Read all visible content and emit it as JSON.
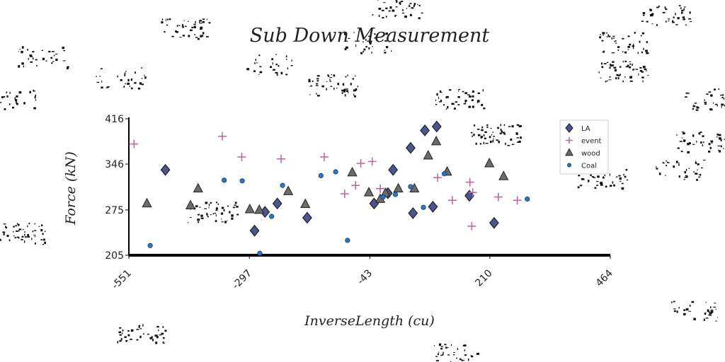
{
  "chart_data": {
    "type": "scatter",
    "title": "Sub Down Measurement",
    "xlabel": "InverseLength (cu)",
    "ylabel": "Force (kN)",
    "xlim": [
      -551,
      464
    ],
    "ylim": [
      205,
      416
    ],
    "xticks": [
      "-551",
      "-297",
      "-43",
      "210",
      "464"
    ],
    "yticks": [
      "205",
      "275",
      "346",
      "416"
    ],
    "legend_position": "top-right",
    "series": [
      {
        "name": "LA",
        "marker": "diamond",
        "color": "#4a5592",
        "points": [
          [
            -474,
            337
          ],
          [
            -286,
            243
          ],
          [
            -264,
            272
          ],
          [
            -238,
            285
          ],
          [
            -175,
            263
          ],
          [
            -34,
            285
          ],
          [
            -5,
            301
          ],
          [
            6,
            337
          ],
          [
            43,
            371
          ],
          [
            48,
            270
          ],
          [
            73,
            398
          ],
          [
            90,
            280
          ],
          [
            98,
            404
          ],
          [
            167,
            297
          ],
          [
            219,
            255
          ]
        ]
      },
      {
        "name": "event",
        "marker": "plus",
        "color": "#c0609a",
        "points": [
          [
            -540,
            377
          ],
          [
            -354,
            389
          ],
          [
            -313,
            357
          ],
          [
            -230,
            354
          ],
          [
            -139,
            357
          ],
          [
            -96,
            300
          ],
          [
            -73,
            313
          ],
          [
            -62,
            347
          ],
          [
            -38,
            350
          ],
          [
            -21,
            308
          ],
          [
            100,
            325
          ],
          [
            131,
            290
          ],
          [
            168,
            318
          ],
          [
            174,
            302
          ],
          [
            172,
            250
          ],
          [
            228,
            295
          ],
          [
            268,
            290
          ]
        ]
      },
      {
        "name": "wood",
        "marker": "triangle",
        "color": "#6b6b6b",
        "points": [
          [
            -513,
            285
          ],
          [
            -421,
            282
          ],
          [
            -405,
            308
          ],
          [
            -296,
            276
          ],
          [
            -276,
            275
          ],
          [
            -215,
            304
          ],
          [
            -179,
            284
          ],
          [
            -80,
            333
          ],
          [
            -45,
            302
          ],
          [
            -21,
            292
          ],
          [
            -10,
            301
          ],
          [
            17,
            308
          ],
          [
            51,
            308
          ],
          [
            80,
            359
          ],
          [
            97,
            381
          ],
          [
            120,
            334
          ],
          [
            209,
            347
          ],
          [
            239,
            327
          ]
        ]
      },
      {
        "name": "Coal",
        "marker": "circle",
        "color": "#2979c0",
        "points": [
          [
            -506,
            220
          ],
          [
            -350,
            321
          ],
          [
            -312,
            320
          ],
          [
            -275,
            208
          ],
          [
            -250,
            265
          ],
          [
            -227,
            313
          ],
          [
            -146,
            328
          ],
          [
            -115,
            334
          ],
          [
            -90,
            228
          ],
          [
            -15,
            295
          ],
          [
            11,
            299
          ],
          [
            43,
            311
          ],
          [
            70,
            279
          ],
          [
            114,
            331
          ],
          [
            289,
            292
          ]
        ]
      }
    ]
  }
}
